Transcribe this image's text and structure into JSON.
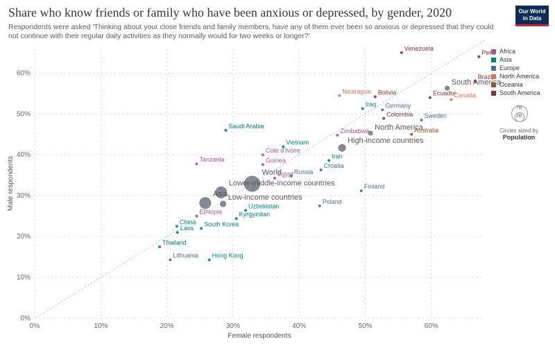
{
  "header": {
    "title": "Share who know friends or family who have been anxious or depressed, by gender, 2020",
    "subtitle": "Respondents were asked 'Thinking about your close friends and family members, have any of them ever been so anxious or depressed that they could not continue with their regular daily activities as they normally would for two weeks or longer?'",
    "logo_line1": "Our World",
    "logo_line2": "in Data"
  },
  "legend": {
    "items": [
      {
        "label": "Africa",
        "color": "#a2559c"
      },
      {
        "label": "Asia",
        "color": "#00847e"
      },
      {
        "label": "Europe",
        "color": "#4c6a9c"
      },
      {
        "label": "North America",
        "color": "#e56e5a"
      },
      {
        "label": "Oceania",
        "color": "#9a5129"
      },
      {
        "label": "South America",
        "color": "#883039"
      }
    ]
  },
  "size_key": {
    "big_label": "7B",
    "small_label": "2B",
    "note": "Circles sized by",
    "variable": "Population"
  },
  "chart_data": {
    "type": "scatter",
    "title": "Share who know friends or family who have been anxious or depressed, by gender, 2020",
    "xlabel": "Female respondents",
    "ylabel": "Male respondents",
    "xlim": [
      0,
      68
    ],
    "ylim": [
      0,
      66
    ],
    "x_ticks": [
      "0%",
      "10%",
      "20%",
      "30%",
      "40%",
      "50%",
      "60%"
    ],
    "y_ticks": [
      "0%",
      "10%",
      "20%",
      "30%",
      "40%",
      "50%",
      "60%"
    ],
    "grid": true,
    "legend_position": "right",
    "points": [
      {
        "label": "Peru",
        "x": 67.2,
        "y": 64,
        "region": "South America"
      },
      {
        "label": "Venezuela",
        "x": 55.5,
        "y": 65,
        "region": "South America"
      },
      {
        "label": "South America",
        "x": 62.4,
        "y": 56.3,
        "region": "aggregate",
        "r": 4
      },
      {
        "label": "Brazil",
        "x": 66.6,
        "y": 58,
        "region": "South America"
      },
      {
        "label": "Nicaragua",
        "x": 46.1,
        "y": 54.5,
        "region": "North America"
      },
      {
        "label": "Bolivia",
        "x": 51.5,
        "y": 54.2,
        "region": "South America"
      },
      {
        "label": "Ecuador",
        "x": 59.8,
        "y": 54.0,
        "region": "South America"
      },
      {
        "label": "Canada",
        "x": 63.0,
        "y": 53.5,
        "region": "North America"
      },
      {
        "label": "Iraq",
        "x": 49.6,
        "y": 51.3,
        "region": "Asia"
      },
      {
        "label": "Germany",
        "x": 52.6,
        "y": 51.0,
        "region": "Europe"
      },
      {
        "label": "Colombia",
        "x": 52.8,
        "y": 48.9,
        "region": "South America"
      },
      {
        "label": "Sweden",
        "x": 58.5,
        "y": 48.5,
        "region": "Europe"
      },
      {
        "label": "Saudi Arabia",
        "x": 28.9,
        "y": 46.0,
        "region": "Asia"
      },
      {
        "label": "North America",
        "x": 50.8,
        "y": 45.3,
        "region": "aggregate",
        "r": 4
      },
      {
        "label": "Australia",
        "x": 57.0,
        "y": 45.0,
        "region": "Oceania"
      },
      {
        "label": "Zimbabwe",
        "x": 45.8,
        "y": 44.8,
        "region": "Africa"
      },
      {
        "label": "High-income countries",
        "x": 46.5,
        "y": 41.7,
        "region": "aggregate",
        "r": 6
      },
      {
        "label": "Vietnam",
        "x": 37.6,
        "y": 42.0,
        "region": "Asia"
      },
      {
        "label": "Cote d'Ivoire",
        "x": 34.5,
        "y": 40.0,
        "region": "Africa"
      },
      {
        "label": "Iran",
        "x": 44.5,
        "y": 38.6,
        "region": "Asia"
      },
      {
        "label": "Tanzania",
        "x": 24.5,
        "y": 37.8,
        "region": "Africa"
      },
      {
        "label": "Guinea",
        "x": 34.5,
        "y": 37.6,
        "region": "Africa"
      },
      {
        "label": "Croatia",
        "x": 43.3,
        "y": 36.3,
        "region": "Europe"
      },
      {
        "label": "Russia",
        "x": 38.8,
        "y": 34.8,
        "region": "Europe"
      },
      {
        "label": "Egypt",
        "x": 36.3,
        "y": 34.3,
        "region": "Africa"
      },
      {
        "label": "World",
        "x": 32.9,
        "y": 32.9,
        "region": "aggregate",
        "r": 12
      },
      {
        "label": "Lower-middle-income countries",
        "x": 28.2,
        "y": 30.8,
        "region": "aggregate",
        "r": 9
      },
      {
        "label": "Finland",
        "x": 49.4,
        "y": 31.2,
        "region": "Europe"
      },
      {
        "label": "Asia",
        "x": 25.8,
        "y": 28.2,
        "region": "aggregate",
        "r": 9
      },
      {
        "label": "Low-income countries",
        "x": 28.5,
        "y": 28.0,
        "region": "aggregate",
        "r": 5
      },
      {
        "label": "Poland",
        "x": 43.1,
        "y": 27.5,
        "region": "Europe"
      },
      {
        "label": "Uzbekistan",
        "x": 31.9,
        "y": 26.4,
        "region": "Asia"
      },
      {
        "label": "Ethiopia",
        "x": 24.5,
        "y": 25.0,
        "region": "Africa"
      },
      {
        "label": "Kyrgyzstan",
        "x": 30.5,
        "y": 24.4,
        "region": "Asia"
      },
      {
        "label": "China",
        "x": 21.5,
        "y": 22.5,
        "region": "Asia"
      },
      {
        "label": "South Korea",
        "x": 25.2,
        "y": 22.0,
        "region": "Asia"
      },
      {
        "label": "Laos",
        "x": 21.6,
        "y": 21.0,
        "region": "Asia"
      },
      {
        "label": "Thailand",
        "x": 18.9,
        "y": 17.5,
        "region": "Asia"
      },
      {
        "label": "Lithuania",
        "x": 20.5,
        "y": 14.3,
        "region": "Europe"
      },
      {
        "label": "Hong Kong",
        "x": 26.4,
        "y": 14.3,
        "region": "Asia"
      }
    ]
  }
}
